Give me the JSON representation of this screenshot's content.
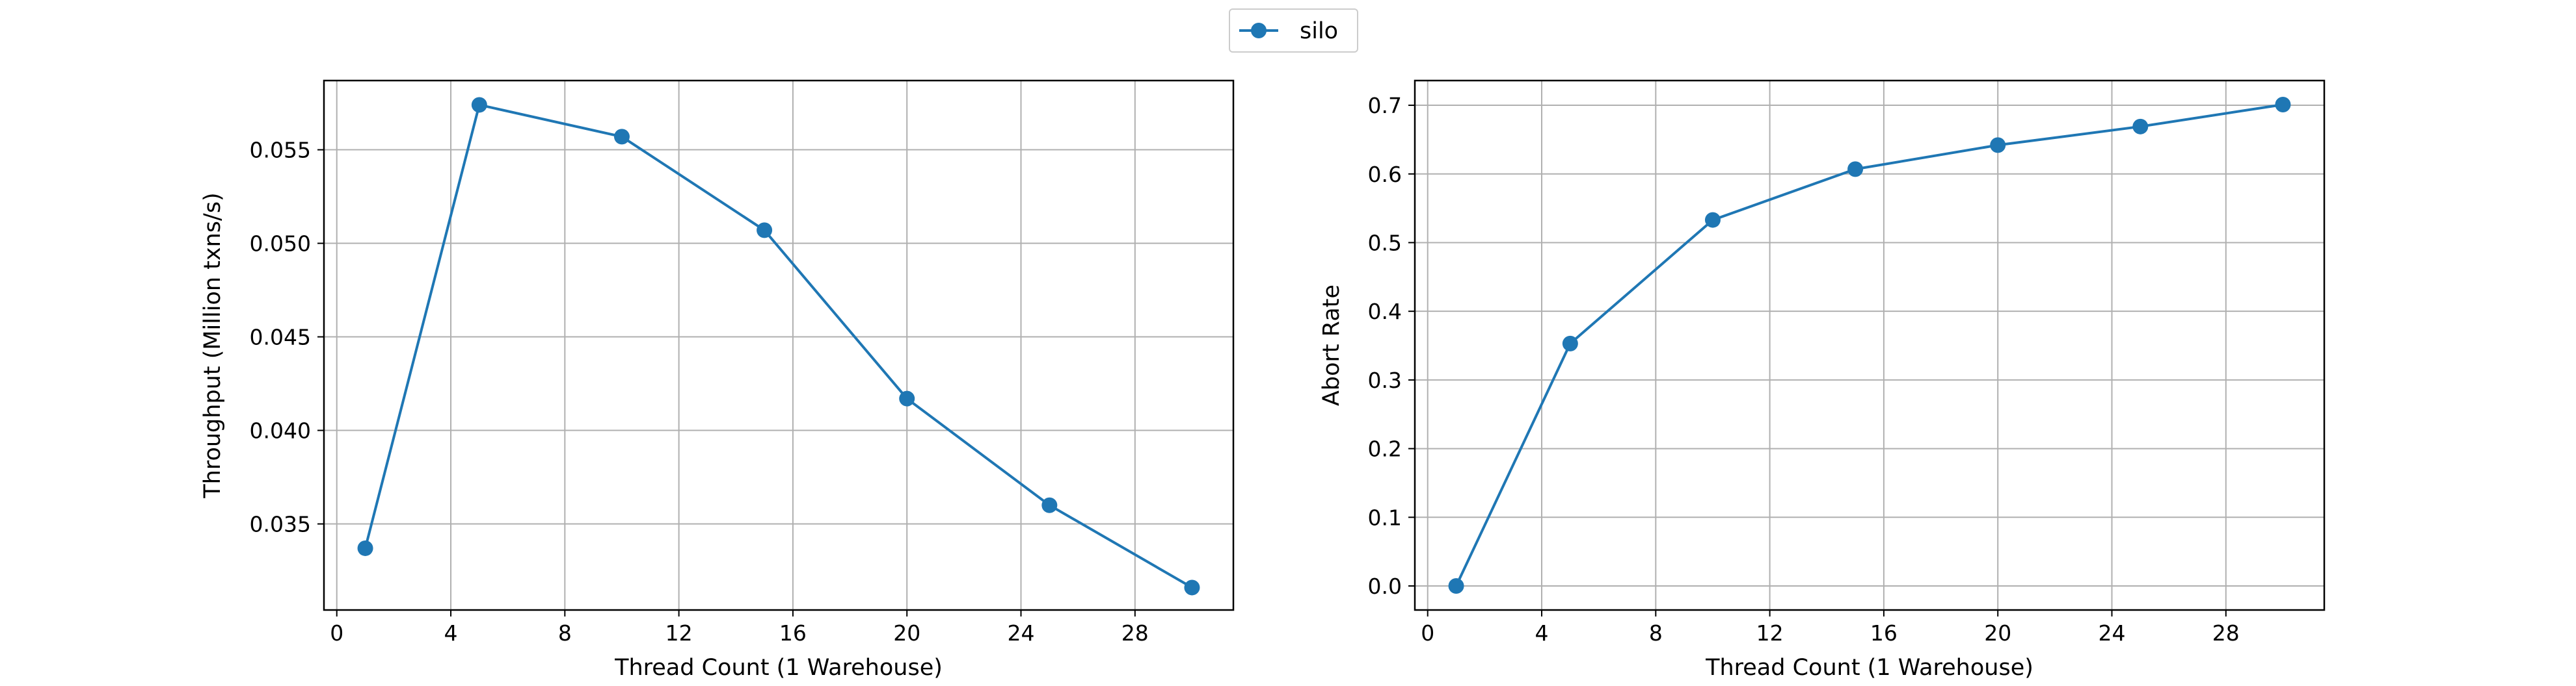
{
  "legend": {
    "label": "silo",
    "placement": "upper-center"
  },
  "chart_data": [
    {
      "type": "line",
      "title": "",
      "xlabel": "Thread Count (1 Warehouse)",
      "ylabel": "Throughput (Million txns/s)",
      "x": [
        1,
        5,
        10,
        15,
        20,
        25,
        30
      ],
      "series": [
        {
          "name": "silo",
          "color": "#1f77b4",
          "marker": "circle",
          "values": [
            0.0337,
            0.0574,
            0.0557,
            0.0507,
            0.0417,
            0.036,
            0.0316
          ]
        }
      ],
      "xlim": [
        -0.45,
        31.45
      ],
      "ylim": [
        0.0304,
        0.0587
      ],
      "xticks": [
        0,
        4,
        8,
        12,
        16,
        20,
        24,
        28
      ],
      "xtick_labels": [
        "0",
        "4",
        "8",
        "12",
        "16",
        "20",
        "24",
        "28"
      ],
      "yticks": [
        0.035,
        0.04,
        0.045,
        0.05,
        0.055
      ],
      "ytick_labels": [
        "0.035",
        "0.040",
        "0.045",
        "0.050",
        "0.055"
      ],
      "grid": true
    },
    {
      "type": "line",
      "title": "",
      "xlabel": "Thread Count (1 Warehouse)",
      "ylabel": "Abort Rate",
      "x": [
        1,
        5,
        10,
        15,
        20,
        25,
        30
      ],
      "series": [
        {
          "name": "silo",
          "color": "#1f77b4",
          "marker": "circle",
          "values": [
            0.0,
            0.353,
            0.533,
            0.607,
            0.642,
            0.669,
            0.701
          ]
        }
      ],
      "xlim": [
        -0.45,
        31.45
      ],
      "ylim": [
        -0.035,
        0.736
      ],
      "xticks": [
        0,
        4,
        8,
        12,
        16,
        20,
        24,
        28
      ],
      "xtick_labels": [
        "0",
        "4",
        "8",
        "12",
        "16",
        "20",
        "24",
        "28"
      ],
      "yticks": [
        0.0,
        0.1,
        0.2,
        0.3,
        0.4,
        0.5,
        0.6,
        0.7
      ],
      "ytick_labels": [
        "0.0",
        "0.1",
        "0.2",
        "0.3",
        "0.4",
        "0.5",
        "0.6",
        "0.7"
      ],
      "grid": true
    }
  ]
}
